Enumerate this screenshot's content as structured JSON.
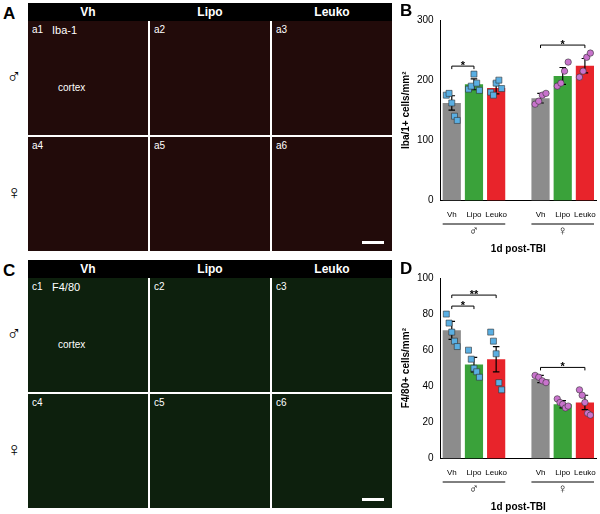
{
  "chart_data": [
    {
      "panel": "B",
      "type": "bar",
      "y_label": "Iba/1+ cells/mm²",
      "x_label": "1d post-TBI",
      "categories": [
        "Vh",
        "Lipo",
        "Leuko",
        null,
        "Vh",
        "Lipo",
        "Leuko"
      ],
      "values": [
        162,
        193,
        187,
        null,
        170,
        207,
        224
      ],
      "errors": [
        12,
        9,
        10,
        null,
        8,
        14,
        12
      ],
      "colors": [
        "#8c8c8c",
        "#3aa23a",
        "#e8242b",
        null,
        "#8c8c8c",
        "#3aa23a",
        "#e8242b"
      ],
      "points": [
        {
          "color": "#5aafe3",
          "marker": "square",
          "values": [
            175,
            178,
            162,
            140,
            133
          ]
        },
        {
          "color": "#5aafe3",
          "marker": "square",
          "values": [
            185,
            190,
            210,
            195,
            183
          ]
        },
        {
          "color": "#5aafe3",
          "marker": "square",
          "values": [
            180,
            175,
            195,
            200,
            186
          ]
        },
        null,
        {
          "color": "#c873cc",
          "marker": "circle",
          "values": [
            160,
            165,
            175,
            178
          ]
        },
        {
          "color": "#c873cc",
          "marker": "circle",
          "values": [
            190,
            195,
            215,
            230
          ]
        },
        {
          "color": "#c873cc",
          "marker": "circle",
          "values": [
            205,
            215,
            238,
            245
          ]
        }
      ],
      "groups": [
        {
          "label": "♂",
          "significance": [
            {
              "between": [
                "Vh",
                "Lipo"
              ],
              "label": "*"
            }
          ]
        },
        {
          "label": "♀",
          "significance": [
            {
              "between": [
                "Vh",
                "Leuko"
              ],
              "label": "*"
            }
          ]
        }
      ],
      "ylim": [
        0,
        300
      ],
      "yticks": [
        0,
        100,
        200,
        300
      ],
      "grid": false
    },
    {
      "panel": "D",
      "type": "bar",
      "y_label": "F4/80+ cells/mm²",
      "x_label": "1d post-TBI",
      "categories": [
        "Vh",
        "Lipo",
        "Leuko",
        null,
        "Vh",
        "Lipo",
        "Leuko"
      ],
      "values": [
        71,
        52,
        55,
        null,
        44,
        30,
        31
      ],
      "errors": [
        5,
        4,
        7,
        null,
        2,
        2,
        4
      ],
      "colors": [
        "#8c8c8c",
        "#3aa23a",
        "#e8242b",
        null,
        "#8c8c8c",
        "#3aa23a",
        "#e8242b"
      ],
      "points": [
        {
          "color": "#5aafe3",
          "marker": "square",
          "values": [
            80,
            75,
            70,
            65,
            62
          ]
        },
        {
          "color": "#5aafe3",
          "marker": "square",
          "values": [
            60,
            55,
            50,
            48,
            45
          ]
        },
        {
          "color": "#5aafe3",
          "marker": "square",
          "values": [
            70,
            65,
            58,
            42,
            38
          ]
        },
        null,
        {
          "color": "#c873cc",
          "marker": "circle",
          "values": [
            46,
            45,
            43,
            42
          ]
        },
        {
          "color": "#c873cc",
          "marker": "circle",
          "values": [
            33,
            31,
            30,
            28,
            29
          ]
        },
        {
          "color": "#c873cc",
          "marker": "circle",
          "values": [
            38,
            35,
            31,
            25,
            24
          ]
        }
      ],
      "groups": [
        {
          "label": "♂",
          "significance": [
            {
              "between": [
                "Vh",
                "Lipo"
              ],
              "label": "*"
            },
            {
              "between": [
                "Vh",
                "Leuko"
              ],
              "label": "**"
            }
          ]
        },
        {
          "label": "♀",
          "significance": [
            {
              "between": [
                "Vh",
                "Leuko"
              ],
              "label": "*"
            }
          ]
        }
      ],
      "ylim": [
        0,
        100
      ],
      "yticks": [
        0,
        20,
        40,
        60,
        80,
        100
      ],
      "grid": false
    }
  ],
  "image_panels": [
    {
      "panel": "A",
      "stain": "Iba-1",
      "region": "cortex",
      "color": "#e0302a",
      "columns": [
        "Vh",
        "Lipo",
        "Leuko"
      ],
      "rows": [
        {
          "label": "♂",
          "cells": [
            "a1",
            "a2",
            "a3"
          ]
        },
        {
          "label": "♀",
          "cells": [
            "a4",
            "a5",
            "a6"
          ]
        }
      ]
    },
    {
      "panel": "C",
      "stain": "F4/80",
      "region": "cortex",
      "color": "#3fcf3f",
      "columns": [
        "Vh",
        "Lipo",
        "Leuko"
      ],
      "rows": [
        {
          "label": "♂",
          "cells": [
            "c1",
            "c2",
            "c3"
          ]
        },
        {
          "label": "♀",
          "cells": [
            "c4",
            "c5",
            "c6"
          ]
        }
      ]
    }
  ]
}
